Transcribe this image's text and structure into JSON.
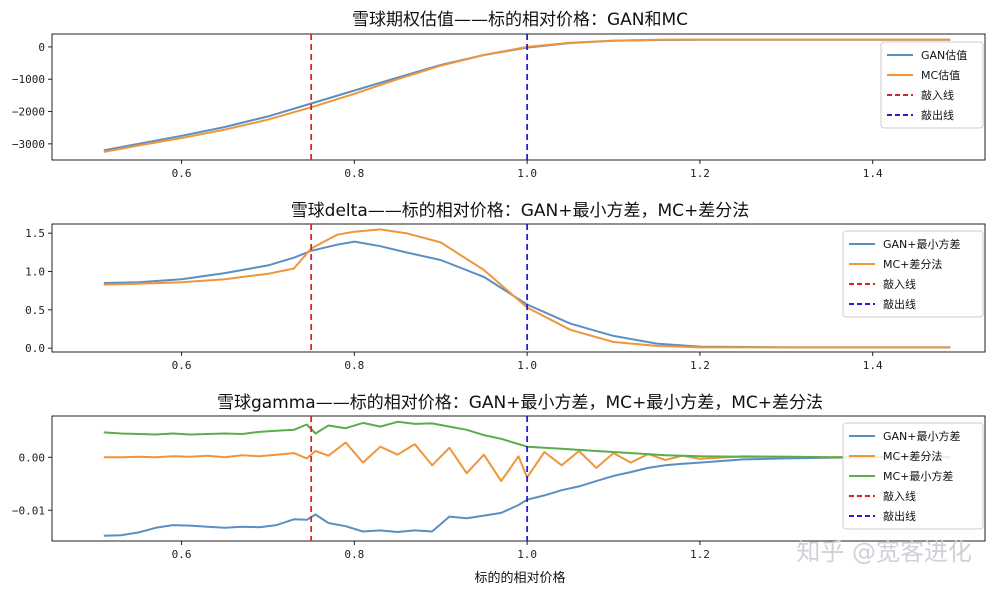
{
  "watermark": "知乎 @宽客进化",
  "colors": {
    "gan": "#5b8fc4",
    "mc": "#f0963a",
    "mc_ls": "#5aad4a",
    "knock_in": "#d62728",
    "knock_out": "#1f1fd6"
  },
  "chart_data": [
    {
      "type": "line",
      "title": "雪球期权估值——标的相对价格：GAN和MC",
      "xlim": [
        0.45,
        1.53
      ],
      "ylim": [
        -3500,
        400
      ],
      "xticks": [
        0.6,
        0.8,
        1.0,
        1.2,
        1.4
      ],
      "xtick_labels": [
        "0.6",
        "0.8",
        "1.0",
        "1.2",
        "1.4"
      ],
      "yticks": [
        0,
        -1000,
        -2000,
        -3000
      ],
      "ytick_labels": [
        "0",
        "−1000",
        "−2000",
        "−3000"
      ],
      "legend_position": "top-right",
      "vlines": [
        {
          "x": 0.75,
          "name": "敲入线",
          "color_key": "knock_in"
        },
        {
          "x": 1.0,
          "name": "敲出线",
          "color_key": "knock_out"
        }
      ],
      "x": [
        0.51,
        0.55,
        0.6,
        0.65,
        0.7,
        0.75,
        0.8,
        0.85,
        0.9,
        0.95,
        1.0,
        1.05,
        1.1,
        1.15,
        1.2,
        1.3,
        1.4,
        1.49
      ],
      "series": [
        {
          "name": "GAN估值",
          "color_key": "gan",
          "values": [
            -3200,
            -3000,
            -2750,
            -2480,
            -2150,
            -1750,
            -1350,
            -950,
            -560,
            -250,
            -20,
            120,
            190,
            215,
            225,
            225,
            225,
            225
          ]
        },
        {
          "name": "MC估值",
          "color_key": "mc",
          "values": [
            -3250,
            -3050,
            -2820,
            -2560,
            -2250,
            -1870,
            -1450,
            -1000,
            -580,
            -250,
            0,
            130,
            195,
            220,
            228,
            228,
            228,
            228
          ]
        }
      ]
    },
    {
      "type": "line",
      "title": "雪球delta——标的相对价格：GAN+最小方差，MC+差分法",
      "xlim": [
        0.45,
        1.53
      ],
      "ylim": [
        -0.05,
        1.62
      ],
      "xticks": [
        0.6,
        0.8,
        1.0,
        1.2,
        1.4
      ],
      "xtick_labels": [
        "0.6",
        "0.8",
        "1.0",
        "1.2",
        "1.4"
      ],
      "yticks": [
        0.0,
        0.5,
        1.0,
        1.5
      ],
      "ytick_labels": [
        "0.0",
        "0.5",
        "1.0",
        "1.5"
      ],
      "legend_position": "top-right",
      "vlines": [
        {
          "x": 0.75,
          "name": "敲入线",
          "color_key": "knock_in"
        },
        {
          "x": 1.0,
          "name": "敲出线",
          "color_key": "knock_out"
        }
      ],
      "x": [
        0.51,
        0.55,
        0.6,
        0.65,
        0.7,
        0.73,
        0.75,
        0.78,
        0.8,
        0.83,
        0.86,
        0.9,
        0.95,
        1.0,
        1.05,
        1.1,
        1.15,
        1.2,
        1.3,
        1.4,
        1.49
      ],
      "series": [
        {
          "name": "GAN+最小方差",
          "color_key": "gan",
          "values": [
            0.85,
            0.86,
            0.9,
            0.98,
            1.08,
            1.18,
            1.27,
            1.35,
            1.39,
            1.33,
            1.25,
            1.15,
            0.93,
            0.57,
            0.32,
            0.16,
            0.06,
            0.02,
            0.01,
            0.01,
            0.01
          ]
        },
        {
          "name": "MC+差分法",
          "color_key": "mc",
          "values": [
            0.83,
            0.84,
            0.86,
            0.9,
            0.97,
            1.04,
            1.3,
            1.48,
            1.52,
            1.55,
            1.5,
            1.38,
            1.02,
            0.53,
            0.24,
            0.08,
            0.03,
            0.01,
            0.01,
            0.01,
            0.01
          ]
        }
      ]
    },
    {
      "type": "line",
      "title": "雪球gamma——标的相对价格：GAN+最小方差，MC+最小方差，MC+差分法",
      "xlim": [
        0.45,
        1.53
      ],
      "ylim": [
        -0.0158,
        0.0078
      ],
      "xticks": [
        0.6,
        0.8,
        1.0,
        1.2
      ],
      "xtick_labels": [
        "0.6",
        "0.8",
        "1.0",
        "1.2"
      ],
      "yticks": [
        0.0,
        -0.01
      ],
      "ytick_labels": [
        "0.00",
        "−0.01"
      ],
      "xlabel": "标的的相对价格",
      "legend_position": "top-right",
      "vlines": [
        {
          "x": 0.75,
          "name": "敲入线",
          "color_key": "knock_in"
        },
        {
          "x": 1.0,
          "name": "敲出线",
          "color_key": "knock_out"
        }
      ],
      "x": [
        0.51,
        0.53,
        0.55,
        0.57,
        0.59,
        0.61,
        0.63,
        0.65,
        0.67,
        0.69,
        0.71,
        0.73,
        0.745,
        0.755,
        0.77,
        0.79,
        0.81,
        0.83,
        0.85,
        0.87,
        0.89,
        0.91,
        0.93,
        0.95,
        0.97,
        0.99,
        1.0,
        1.02,
        1.04,
        1.06,
        1.08,
        1.1,
        1.12,
        1.14,
        1.16,
        1.18,
        1.2,
        1.25,
        1.3,
        1.35,
        1.4,
        1.45,
        1.49
      ],
      "series": [
        {
          "name": "GAN+最小方差",
          "color_key": "gan",
          "values": [
            -0.0148,
            -0.0147,
            -0.0142,
            -0.0133,
            -0.0128,
            -0.0129,
            -0.0131,
            -0.0133,
            -0.0131,
            -0.0132,
            -0.0128,
            -0.0117,
            -0.0118,
            -0.0108,
            -0.0124,
            -0.013,
            -0.014,
            -0.0138,
            -0.0141,
            -0.0138,
            -0.014,
            -0.0112,
            -0.0115,
            -0.011,
            -0.0105,
            -0.009,
            -0.008,
            -0.0072,
            -0.0062,
            -0.0055,
            -0.0045,
            -0.0035,
            -0.0028,
            -0.002,
            -0.0015,
            -0.0012,
            -0.001,
            -0.0004,
            -0.0002,
            -0.0001,
            0.0,
            0.0,
            0.0
          ]
        },
        {
          "name": "MC+差分法",
          "color_key": "mc",
          "values": [
            0.0,
            0.0,
            0.0001,
            0.0,
            0.0002,
            0.0001,
            0.0003,
            0.0,
            0.0004,
            0.0002,
            0.0005,
            0.0008,
            -0.0002,
            0.0012,
            0.0003,
            0.0028,
            -0.001,
            0.002,
            0.0005,
            0.0025,
            -0.0015,
            0.0018,
            -0.003,
            0.0005,
            -0.0045,
            0.0002,
            -0.0038,
            0.001,
            -0.0015,
            0.0012,
            -0.002,
            0.0008,
            -0.001,
            0.0006,
            -0.0005,
            0.0003,
            -0.0003,
            0.0002,
            0.0001,
            0.0,
            0.0001,
            0.0,
            0.0
          ]
        },
        {
          "name": "MC+最小方差",
          "color_key": "mc_ls",
          "values": [
            0.0047,
            0.0045,
            0.0044,
            0.0043,
            0.0045,
            0.0043,
            0.0044,
            0.0045,
            0.0044,
            0.0048,
            0.005,
            0.0052,
            0.0062,
            0.0045,
            0.006,
            0.0055,
            0.0065,
            0.0058,
            0.0067,
            0.0063,
            0.0064,
            0.0058,
            0.0052,
            0.0042,
            0.0035,
            0.0025,
            0.002,
            0.0018,
            0.0016,
            0.0014,
            0.0012,
            0.001,
            0.0008,
            0.0006,
            0.0004,
            0.0003,
            0.0002,
            0.0001,
            0.0001,
            0.0,
            0.0,
            0.0,
            0.0
          ]
        }
      ]
    }
  ]
}
